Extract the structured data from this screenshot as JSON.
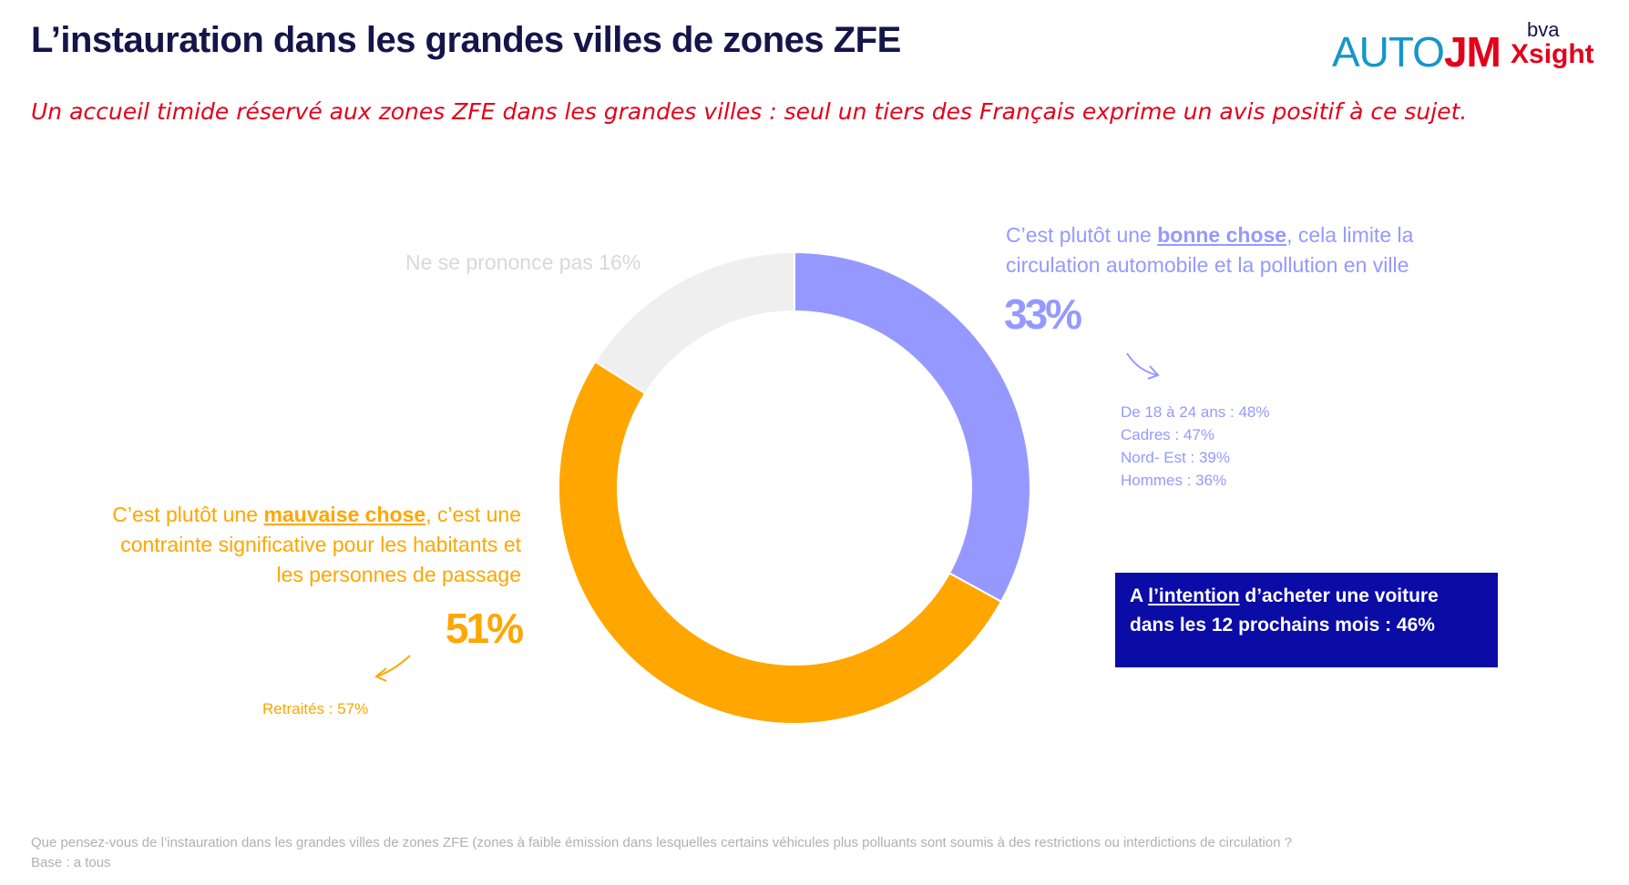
{
  "header": {
    "title": "L’instauration dans les grandes villes de zones ZFE",
    "subtitle": "Un accueil timide réservé aux zones ZFE dans les grandes villes : seul un tiers des Français exprime un  avis positif à ce sujet.",
    "logo_left": "AUTO",
    "logo_left_accent": "JM",
    "logo_right_top": "bva",
    "logo_right_bottom": "Xsight"
  },
  "chart_data": {
    "type": "donut",
    "labels": [
      [
        {
          "text": "C’est plutôt une "
        },
        {
          "text": "bonne chose",
          "underline": true
        },
        {
          "text": ", cela limite la circulation automobile et la pollution en ville"
        }
      ],
      [
        {
          "text": "C’est plutôt une "
        },
        {
          "text": "mauvaise chose",
          "underline": true
        },
        {
          "text": ", c’est une contrainte significative pour les habitants et les personnes de passage"
        }
      ],
      [
        {
          "text": "Ne se prononce pas"
        }
      ]
    ],
    "values": [
      33,
      51,
      16
    ],
    "value_labels": [
      "33%",
      "51%",
      "16%"
    ],
    "colors": [
      "#9599ff",
      "#ffa600",
      "#efefef"
    ],
    "breakdowns": [
      [
        "De 18 à 24 ans : 48%",
        "Cadres : 47%",
        "Nord- Est : 39%",
        "Hommes : 36%"
      ],
      [
        "Retraités : 57%"
      ],
      null
    ]
  },
  "callout": [
    {
      "text": "A "
    },
    {
      "text": "l’intention",
      "underline": true
    },
    {
      "text": " d’acheter une voiture dans les 12 prochains mois : 46%"
    }
  ],
  "footnote": [
    "Que pensez-vous de l’instauration dans les grandes villes de zones ZFE (zones à faible émission dans lesquelles certains véhicules plus polluants sont soumis à des restrictions ou interdictions de circulation ?",
    "Base : a tous"
  ]
}
